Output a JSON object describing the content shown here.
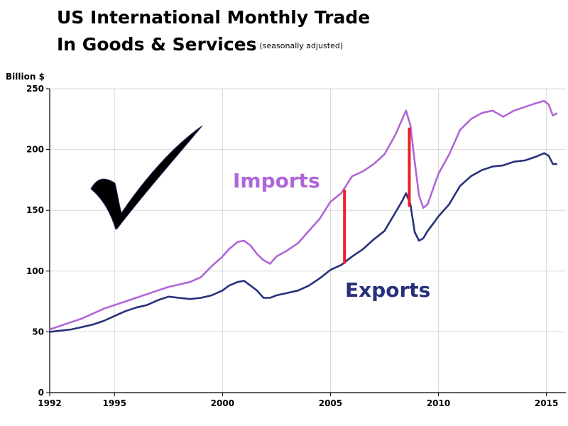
{
  "chart_data": {
    "type": "line",
    "title": "US International Monthly Trade",
    "title_line2": "In Goods & Services",
    "subtitle": "(seasonally adjusted)",
    "ylabel": "Billion $",
    "xlabel": "",
    "xlim": [
      1992,
      2015.9
    ],
    "ylim": [
      0,
      250
    ],
    "x_ticks": [
      1992,
      1995,
      2000,
      2005,
      2010,
      2015
    ],
    "y_ticks": [
      0,
      50,
      100,
      150,
      200,
      250
    ],
    "grid": true,
    "colors": {
      "imports": "#b066d6",
      "exports": "#27317a",
      "gap_marker": "#e8202a",
      "axis": "#000000",
      "grid": "#d8d8d8"
    },
    "series": [
      {
        "name": "Imports",
        "x": [
          1992.0,
          1992.5,
          1993.0,
          1993.5,
          1994.0,
          1994.5,
          1995.0,
          1995.5,
          1996.0,
          1996.5,
          1997.0,
          1997.5,
          1998.0,
          1998.5,
          1999.0,
          1999.5,
          2000.0,
          2000.3,
          2000.7,
          2001.0,
          2001.3,
          2001.6,
          2001.9,
          2002.2,
          2002.5,
          2003.0,
          2003.5,
          2004.0,
          2004.5,
          2005.0,
          2005.5,
          2006.0,
          2006.5,
          2007.0,
          2007.5,
          2008.0,
          2008.3,
          2008.5,
          2008.7,
          2008.9,
          2009.1,
          2009.3,
          2009.5,
          2009.8,
          2010.0,
          2010.5,
          2011.0,
          2011.5,
          2012.0,
          2012.5,
          2013.0,
          2013.5,
          2014.0,
          2014.5,
          2014.9,
          2015.1,
          2015.3,
          2015.5
        ],
        "values": [
          52,
          55,
          58,
          61,
          65,
          69,
          72,
          75,
          78,
          81,
          84,
          87,
          89,
          91,
          95,
          104,
          112,
          118,
          124,
          125,
          121,
          114,
          109,
          106,
          112,
          117,
          123,
          133,
          143,
          157,
          164,
          178,
          182,
          188,
          196,
          212,
          224,
          232,
          220,
          190,
          162,
          152,
          155,
          170,
          180,
          196,
          216,
          225,
          230,
          232,
          227,
          232,
          235,
          238,
          240,
          237,
          228,
          230
        ]
      },
      {
        "name": "Exports",
        "x": [
          1992.0,
          1992.5,
          1993.0,
          1993.5,
          1994.0,
          1994.5,
          1995.0,
          1995.5,
          1996.0,
          1996.5,
          1997.0,
          1997.5,
          1998.0,
          1998.5,
          1999.0,
          1999.5,
          2000.0,
          2000.3,
          2000.7,
          2001.0,
          2001.3,
          2001.6,
          2001.9,
          2002.2,
          2002.5,
          2003.0,
          2003.5,
          2004.0,
          2004.5,
          2005.0,
          2005.5,
          2006.0,
          2006.5,
          2007.0,
          2007.5,
          2008.0,
          2008.3,
          2008.5,
          2008.7,
          2008.9,
          2009.1,
          2009.3,
          2009.5,
          2009.8,
          2010.0,
          2010.5,
          2011.0,
          2011.5,
          2012.0,
          2012.5,
          2013.0,
          2013.5,
          2014.0,
          2014.5,
          2014.9,
          2015.1,
          2015.3,
          2015.5
        ],
        "values": [
          50,
          51,
          52,
          54,
          56,
          59,
          63,
          67,
          70,
          72,
          76,
          79,
          78,
          77,
          78,
          80,
          84,
          88,
          91,
          92,
          88,
          84,
          78,
          78,
          80,
          82,
          84,
          88,
          94,
          101,
          105,
          112,
          118,
          126,
          133,
          148,
          157,
          164,
          155,
          132,
          125,
          127,
          133,
          140,
          145,
          155,
          170,
          178,
          183,
          186,
          187,
          190,
          191,
          194,
          197,
          195,
          188,
          188
        ]
      }
    ],
    "annotations": [
      {
        "type": "gap_bar",
        "x": 2005.65,
        "y_low": 106,
        "y_high": 167
      },
      {
        "type": "gap_bar",
        "x": 2008.65,
        "y_low": 153,
        "y_high": 218
      }
    ]
  }
}
